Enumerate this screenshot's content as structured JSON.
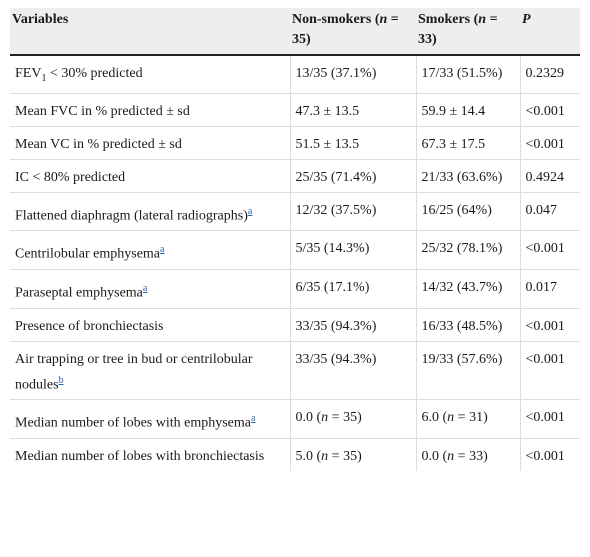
{
  "header": {
    "variables": "Variables",
    "nonsmokers_pre": "Non-smokers (",
    "nonsmokers_n": "n",
    "nonsmokers_post": " = 35)",
    "smokers_pre": "Smokers (",
    "smokers_n": "n",
    "smokers_post": " = 33)",
    "p": "P"
  },
  "rows": [
    {
      "variable": "FEV",
      "variable_sub": "1",
      "variable_rest": " < 30% predicted",
      "nonsmokers": "13/35 (37.1%)",
      "smokers": "17/33 (51.5%)",
      "p": "0.2329"
    },
    {
      "variable": "Mean FVC in % predicted ± sd",
      "nonsmokers": "47.3 ± 13.5",
      "smokers": "59.9 ± 14.4",
      "p": "<0.001"
    },
    {
      "variable": "Mean VC in % predicted ± sd",
      "nonsmokers": "51.5 ± 13.5",
      "smokers": "67.3 ± 17.5",
      "p": "<0.001"
    },
    {
      "variable": "IC < 80% predicted",
      "nonsmokers": "25/35 (71.4%)",
      "smokers": "21/33 (63.6%)",
      "p": "0.4924"
    },
    {
      "variable": "Flattened diaphragm (lateral radiographs)",
      "footnote": "a",
      "nonsmokers": "12/32 (37.5%)",
      "smokers": "16/25 (64%)",
      "p": "0.047"
    },
    {
      "variable": "Centrilobular emphysema",
      "footnote": "a",
      "nonsmokers": "5/35 (14.3%)",
      "smokers": "25/32 (78.1%)",
      "p": "<0.001"
    },
    {
      "variable": "Paraseptal emphysema",
      "footnote": "a",
      "nonsmokers": "6/35 (17.1%)",
      "smokers": "14/32 (43.7%)",
      "p": "0.017"
    },
    {
      "variable": "Presence of bronchiectasis",
      "nonsmokers": "33/35 (94.3%)",
      "smokers": "16/33 (48.5%)",
      "p": "<0.001"
    },
    {
      "variable": "Air trapping or tree in bud or centrilobular nodules",
      "footnote": "b",
      "nonsmokers": "33/35 (94.3%)",
      "smokers": "19/33 (57.6%)",
      "p": "<0.001"
    },
    {
      "variable": "Median number of lobes with emphysema",
      "footnote": "a",
      "nonsmokers_val": "0.0 (",
      "nonsmokers_n": "n",
      "nonsmokers_rest": " = 35)",
      "smokers_val": "6.0 (",
      "smokers_n": "n",
      "smokers_rest": " = 31)",
      "p": "<0.001"
    },
    {
      "variable": "Median number of lobes with bronchiectasis",
      "nonsmokers_val": "5.0 (",
      "nonsmokers_n": "n",
      "nonsmokers_rest": " = 35)",
      "smokers_val": "0.0 (",
      "smokers_n": "n",
      "smokers_rest": " = 33)",
      "p": "<0.001"
    }
  ],
  "colors": {
    "header_bg": "#eeeeee",
    "link": "#2a62b8",
    "rule": "#222222",
    "gridline": "#dcdcdc"
  }
}
